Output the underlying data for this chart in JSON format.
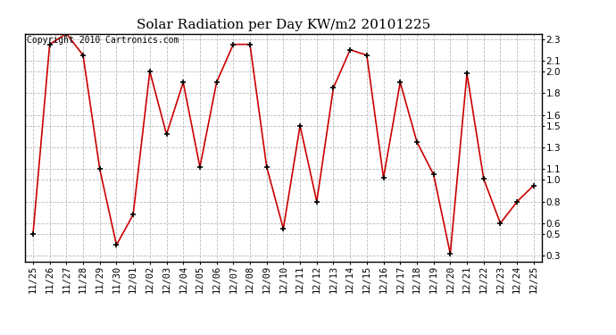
{
  "title": "Solar Radiation per Day KW/m2 20101225",
  "copyright_text": "Copyright 2010 Cartronics.com",
  "labels": [
    "11/25",
    "11/26",
    "11/27",
    "11/28",
    "11/29",
    "11/30",
    "12/01",
    "12/02",
    "12/03",
    "12/04",
    "12/05",
    "12/06",
    "12/07",
    "12/08",
    "12/09",
    "12/10",
    "12/11",
    "12/12",
    "12/13",
    "12/14",
    "12/15",
    "12/16",
    "12/17",
    "12/18",
    "12/19",
    "12/20",
    "12/21",
    "12/22",
    "12/23",
    "12/24",
    "12/25"
  ],
  "values": [
    0.5,
    2.25,
    2.35,
    2.15,
    1.1,
    0.4,
    0.68,
    2.0,
    1.42,
    1.9,
    1.12,
    1.9,
    2.25,
    2.25,
    1.12,
    0.55,
    1.5,
    0.8,
    1.85,
    2.2,
    2.15,
    1.02,
    1.9,
    1.35,
    1.05,
    0.32,
    1.98,
    1.01,
    0.6,
    0.8,
    0.95
  ],
  "line_color": "#cc0000",
  "marker_color": "#000000",
  "bg_color": "#ffffff",
  "grid_color": "#bbbbbb",
  "ylim": [
    0.25,
    2.35
  ],
  "yticks": [
    0.3,
    0.5,
    0.6,
    0.8,
    1.0,
    1.1,
    1.3,
    1.5,
    1.6,
    1.8,
    2.0,
    2.1,
    2.3
  ],
  "title_fontsize": 11,
  "copyright_fontsize": 7,
  "tick_fontsize": 7.5
}
